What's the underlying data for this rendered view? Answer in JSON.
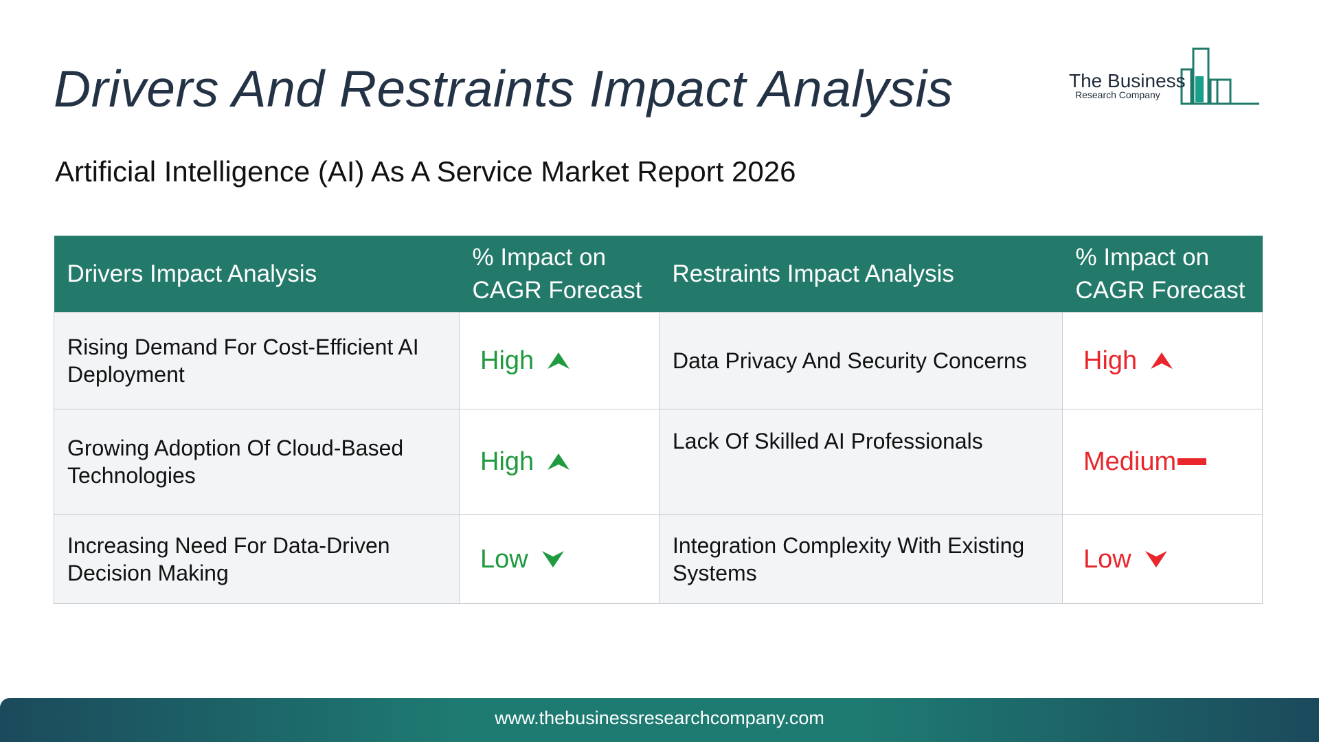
{
  "header": {
    "title": "Drivers And Restraints Impact Analysis",
    "subtitle": "Artificial Intelligence (AI) As A Service Market Report 2026"
  },
  "logo": {
    "line1": "The Business",
    "line2": "Research Company"
  },
  "table": {
    "headers": {
      "drivers": "Drivers Impact Analysis",
      "drivers_impact": "% Impact on CAGR Forecast",
      "restraints": "Restraints Impact Analysis",
      "restraints_impact": "% Impact on CAGR Forecast"
    },
    "rows": [
      {
        "driver": "Rising Demand For Cost-Efficient AI Deployment",
        "driver_impact": "High",
        "driver_icon": "arrow-up-icon",
        "restraint": "Data Privacy And Security Concerns",
        "restraint_impact": "High",
        "restraint_icon": "arrow-up-icon"
      },
      {
        "driver": "Growing Adoption Of Cloud-Based Technologies",
        "driver_impact": "High",
        "driver_icon": "arrow-up-icon",
        "restraint": "Lack Of Skilled AI Professionals",
        "restraint_impact": "Medium",
        "restraint_icon": "dash-icon"
      },
      {
        "driver": "Increasing Need For Data-Driven Decision Making",
        "driver_impact": "Low",
        "driver_icon": "arrow-down-icon",
        "restraint": "Integration Complexity With Existing Systems",
        "restraint_impact": "Low",
        "restraint_icon": "arrow-down-icon"
      }
    ]
  },
  "footer": {
    "url": "www.thebusinessresearchcompany.com"
  },
  "colors": {
    "header_bg": "#247a6a",
    "driver_impact": "#1f9a3e",
    "restraint_impact": "#e8262b",
    "title": "#233245"
  }
}
